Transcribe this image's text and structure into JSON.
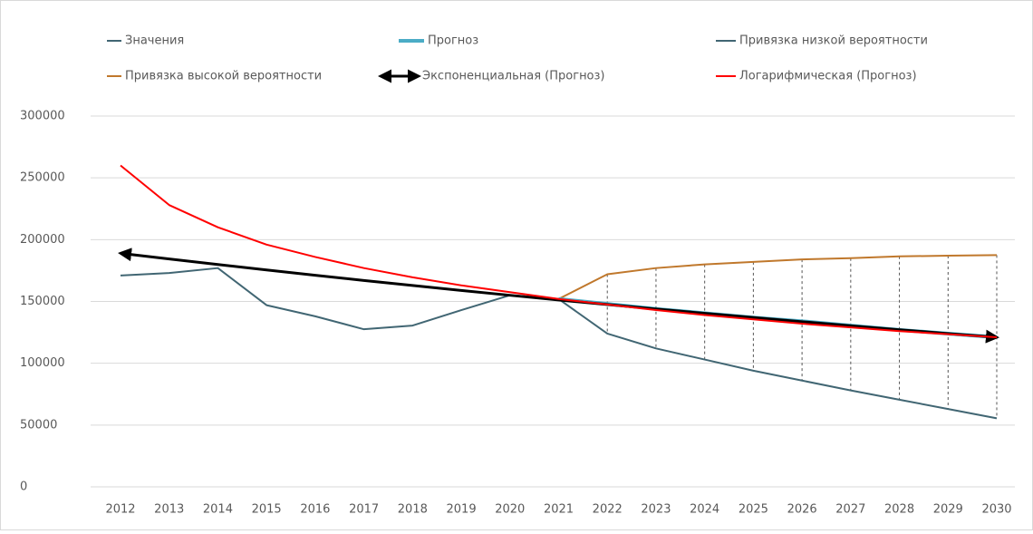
{
  "chart_data": {
    "type": "line",
    "x": [
      2012,
      2013,
      2014,
      2015,
      2016,
      2017,
      2018,
      2019,
      2020,
      2021,
      2022,
      2023,
      2024,
      2025,
      2026,
      2027,
      2028,
      2029,
      2030
    ],
    "series": [
      {
        "name": "Значения",
        "color": "#416673",
        "values": [
          171000,
          173000,
          177000,
          147000,
          138000,
          127500,
          130500,
          143000,
          155000,
          152000,
          null,
          null,
          null,
          null,
          null,
          null,
          null,
          null,
          null
        ]
      },
      {
        "name": "Прогноз",
        "color": "#4bacc6",
        "values": [
          null,
          null,
          null,
          null,
          null,
          null,
          null,
          null,
          null,
          152000,
          148000,
          144000,
          140500,
          137000,
          134000,
          130500,
          127000,
          124000,
          121000
        ]
      },
      {
        "name": "Привязка низкой вероятности",
        "color": "#416673",
        "values": [
          null,
          null,
          null,
          null,
          null,
          null,
          null,
          null,
          null,
          152000,
          124000,
          112000,
          103000,
          94000,
          86000,
          78000,
          70500,
          63000,
          55500
        ]
      },
      {
        "name": "Привязка высокой вероятности",
        "color": "#c0782c",
        "values": [
          null,
          null,
          null,
          null,
          null,
          null,
          null,
          null,
          null,
          152000,
          172000,
          177000,
          180000,
          182000,
          184000,
          185000,
          186500,
          187000,
          187500
        ]
      },
      {
        "name": "Экспоненциальная (Прогноз)",
        "color": "#000000",
        "values": [
          189000,
          184400,
          179900,
          175500,
          171200,
          167000,
          162900,
          158900,
          155000,
          151200,
          147500,
          143900,
          140400,
          137000,
          133600,
          130300,
          127100,
          124000,
          121000
        ]
      },
      {
        "name": "Логарифмическая (Прогноз)",
        "color": "#ff0000",
        "values": [
          260000,
          228000,
          210000,
          196000,
          186000,
          177000,
          169500,
          163000,
          157500,
          152000,
          147500,
          143000,
          139000,
          135500,
          132000,
          129000,
          126000,
          123500,
          121000
        ]
      }
    ],
    "ylim": [
      0,
      300000
    ],
    "yticks": [
      0,
      50000,
      100000,
      150000,
      200000,
      250000,
      300000
    ],
    "grid": true
  }
}
